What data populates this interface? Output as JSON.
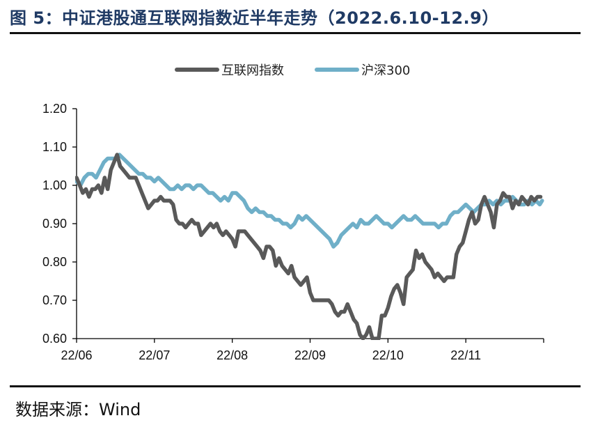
{
  "header": {
    "title": "图 5：中证港股通互联网指数近半年走势（2022.6.10-12.9）"
  },
  "footer": {
    "source": "数据来源：Wind"
  },
  "colors": {
    "title": "#1f3a64",
    "internet_index": "#595959",
    "csi300": "#6fafc8",
    "axis": "#000000"
  },
  "chart_data": {
    "type": "line",
    "title": "",
    "xlabel": "",
    "ylabel": "",
    "ylim": [
      0.6,
      1.2
    ],
    "yticks": [
      0.6,
      0.7,
      0.8,
      0.9,
      1.0,
      1.1,
      1.2
    ],
    "ytick_labels": [
      "0.60",
      "0.70",
      "0.80",
      "0.90",
      "1.00",
      "1.10",
      "1.20"
    ],
    "xlim": [
      0,
      6
    ],
    "xticks": [
      0,
      1,
      2,
      3,
      4,
      5
    ],
    "xtick_labels": [
      "22/06",
      "22/07",
      "22/08",
      "22/09",
      "22/10",
      "22/11"
    ],
    "legend_position": "top-center",
    "series": [
      {
        "name": "互联网指数",
        "color": "#595959",
        "x": [
          0.0,
          0.04,
          0.08,
          0.12,
          0.16,
          0.2,
          0.24,
          0.28,
          0.32,
          0.36,
          0.4,
          0.44,
          0.48,
          0.52,
          0.56,
          0.6,
          0.64,
          0.68,
          0.72,
          0.76,
          0.8,
          0.84,
          0.88,
          0.92,
          0.96,
          1.0,
          1.04,
          1.08,
          1.12,
          1.16,
          1.2,
          1.24,
          1.28,
          1.32,
          1.36,
          1.4,
          1.44,
          1.48,
          1.52,
          1.56,
          1.6,
          1.64,
          1.68,
          1.72,
          1.76,
          1.8,
          1.84,
          1.88,
          1.92,
          1.96,
          2.0,
          2.04,
          2.08,
          2.12,
          2.16,
          2.2,
          2.24,
          2.28,
          2.32,
          2.36,
          2.4,
          2.44,
          2.48,
          2.52,
          2.56,
          2.6,
          2.64,
          2.68,
          2.72,
          2.76,
          2.8,
          2.84,
          2.88,
          2.92,
          2.96,
          3.0,
          3.04,
          3.08,
          3.12,
          3.16,
          3.2,
          3.24,
          3.28,
          3.32,
          3.36,
          3.4,
          3.44,
          3.48,
          3.52,
          3.56,
          3.6,
          3.64,
          3.68,
          3.72,
          3.76,
          3.8,
          3.84,
          3.88,
          3.92,
          3.96,
          4.0,
          4.04,
          4.08,
          4.12,
          4.16,
          4.2,
          4.24,
          4.28,
          4.32,
          4.36,
          4.4,
          4.44,
          4.48,
          4.52,
          4.56,
          4.6,
          4.64,
          4.68,
          4.72,
          4.76,
          4.8,
          4.84,
          4.88,
          4.92,
          4.96,
          5.0,
          5.04,
          5.08,
          5.12,
          5.16,
          5.2,
          5.24,
          5.28,
          5.32,
          5.36,
          5.4,
          5.44,
          5.48,
          5.52,
          5.56,
          5.6,
          5.64,
          5.68,
          5.72,
          5.76,
          5.8,
          5.84,
          5.88,
          5.92,
          5.96
        ],
        "values": [
          1.02,
          1.0,
          0.98,
          0.99,
          0.97,
          0.99,
          0.99,
          1.0,
          0.98,
          1.02,
          0.99,
          1.04,
          1.06,
          1.08,
          1.05,
          1.04,
          1.03,
          1.02,
          1.02,
          1.02,
          1.0,
          0.98,
          0.96,
          0.94,
          0.95,
          0.96,
          0.96,
          0.97,
          0.96,
          0.96,
          0.96,
          0.95,
          0.91,
          0.9,
          0.9,
          0.89,
          0.9,
          0.91,
          0.9,
          0.9,
          0.87,
          0.88,
          0.89,
          0.9,
          0.89,
          0.9,
          0.88,
          0.87,
          0.88,
          0.87,
          0.86,
          0.84,
          0.88,
          0.88,
          0.88,
          0.87,
          0.86,
          0.85,
          0.84,
          0.83,
          0.81,
          0.84,
          0.84,
          0.83,
          0.79,
          0.81,
          0.79,
          0.78,
          0.77,
          0.79,
          0.76,
          0.75,
          0.74,
          0.75,
          0.76,
          0.72,
          0.7,
          0.7,
          0.7,
          0.7,
          0.7,
          0.7,
          0.69,
          0.67,
          0.66,
          0.67,
          0.67,
          0.69,
          0.67,
          0.65,
          0.64,
          0.61,
          0.6,
          0.61,
          0.63,
          0.6,
          0.6,
          0.6,
          0.66,
          0.66,
          0.68,
          0.71,
          0.73,
          0.74,
          0.72,
          0.69,
          0.76,
          0.77,
          0.78,
          0.83,
          0.81,
          0.82,
          0.8,
          0.79,
          0.78,
          0.76,
          0.77,
          0.76,
          0.75,
          0.76,
          0.76,
          0.76,
          0.82,
          0.84,
          0.85,
          0.88,
          0.91,
          0.93,
          0.9,
          0.91,
          0.95,
          0.97,
          0.95,
          0.93,
          0.89,
          0.95,
          0.96,
          0.98,
          0.97,
          0.97,
          0.94,
          0.96,
          0.95,
          0.97,
          0.96,
          0.95,
          0.97,
          0.96,
          0.97,
          0.97
        ],
        "visible_until": 5.98
      },
      {
        "name": "沪深300",
        "color": "#6fafc8",
        "x": [
          0.0,
          0.05,
          0.1,
          0.15,
          0.2,
          0.25,
          0.3,
          0.35,
          0.4,
          0.45,
          0.5,
          0.55,
          0.6,
          0.65,
          0.7,
          0.75,
          0.8,
          0.85,
          0.9,
          0.95,
          1.0,
          1.05,
          1.1,
          1.15,
          1.2,
          1.25,
          1.3,
          1.35,
          1.4,
          1.45,
          1.5,
          1.55,
          1.6,
          1.65,
          1.7,
          1.75,
          1.8,
          1.85,
          1.9,
          1.95,
          2.0,
          2.05,
          2.1,
          2.15,
          2.2,
          2.25,
          2.3,
          2.35,
          2.4,
          2.45,
          2.5,
          2.55,
          2.6,
          2.65,
          2.7,
          2.75,
          2.8,
          2.85,
          2.9,
          2.95,
          3.0,
          3.05,
          3.1,
          3.15,
          3.2,
          3.25,
          3.3,
          3.35,
          3.4,
          3.45,
          3.5,
          3.55,
          3.6,
          3.65,
          3.7,
          3.75,
          3.8,
          3.85,
          3.9,
          3.95,
          4.0,
          4.05,
          4.1,
          4.15,
          4.2,
          4.25,
          4.3,
          4.35,
          4.4,
          4.45,
          4.5,
          4.55,
          4.6,
          4.65,
          4.7,
          4.75,
          4.8,
          4.85,
          4.9,
          4.95,
          5.0,
          5.05,
          5.1,
          5.15,
          5.2,
          5.25,
          5.3,
          5.35,
          5.4,
          5.45,
          5.5,
          5.55,
          5.6,
          5.65,
          5.7,
          5.75,
          5.8,
          5.85,
          5.9,
          5.95,
          5.98
        ],
        "values": [
          1.01,
          1.0,
          1.02,
          1.03,
          1.03,
          1.02,
          1.04,
          1.06,
          1.07,
          1.07,
          1.07,
          1.08,
          1.07,
          1.06,
          1.05,
          1.04,
          1.03,
          1.03,
          1.02,
          1.02,
          1.01,
          1.02,
          1.01,
          1.0,
          0.99,
          0.99,
          1.0,
          0.99,
          1.0,
          1.0,
          0.99,
          1.0,
          1.0,
          0.99,
          0.98,
          0.98,
          0.97,
          0.96,
          0.97,
          0.96,
          0.98,
          0.98,
          0.97,
          0.96,
          0.94,
          0.93,
          0.94,
          0.93,
          0.93,
          0.92,
          0.92,
          0.91,
          0.91,
          0.9,
          0.9,
          0.89,
          0.9,
          0.92,
          0.91,
          0.92,
          0.91,
          0.9,
          0.89,
          0.88,
          0.87,
          0.86,
          0.84,
          0.85,
          0.87,
          0.88,
          0.89,
          0.9,
          0.89,
          0.91,
          0.9,
          0.9,
          0.91,
          0.92,
          0.91,
          0.9,
          0.9,
          0.89,
          0.9,
          0.91,
          0.92,
          0.91,
          0.91,
          0.92,
          0.91,
          0.9,
          0.9,
          0.9,
          0.9,
          0.89,
          0.9,
          0.9,
          0.92,
          0.93,
          0.93,
          0.94,
          0.95,
          0.94,
          0.93,
          0.94,
          0.95,
          0.95,
          0.96,
          0.95,
          0.96,
          0.95,
          0.96,
          0.96,
          0.97,
          0.96,
          0.95,
          0.95,
          0.96,
          0.95,
          0.96,
          0.95,
          0.96
        ]
      }
    ]
  }
}
